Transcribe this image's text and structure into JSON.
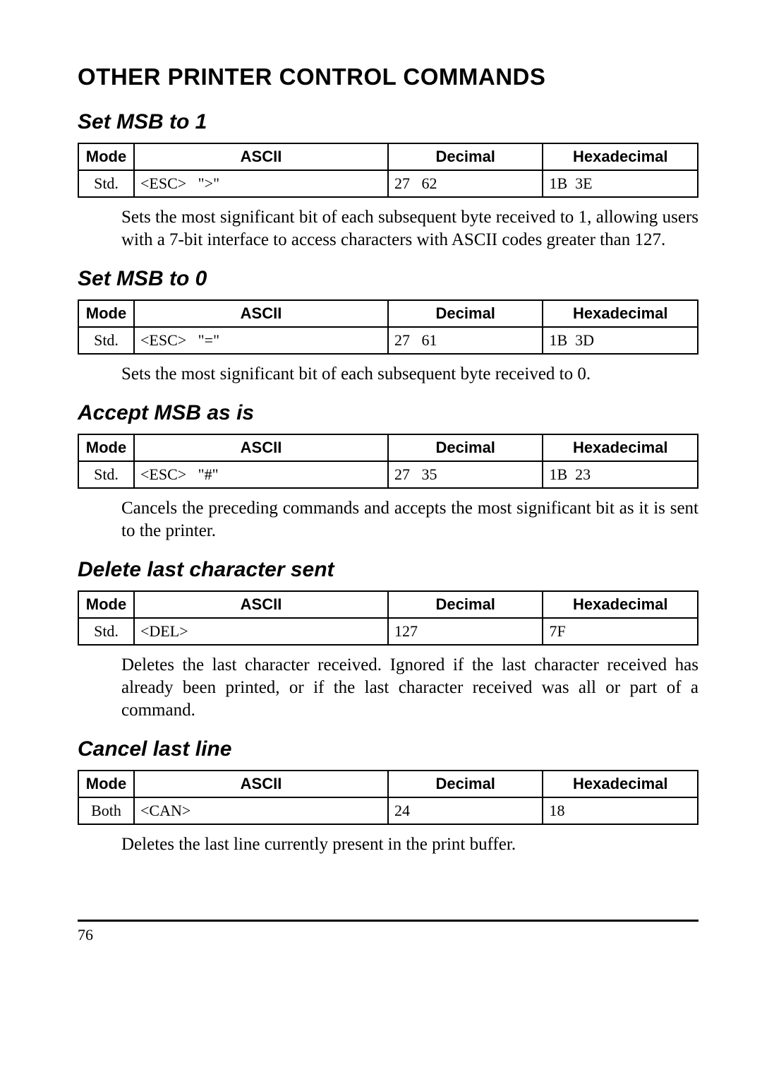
{
  "main_heading": "OTHER PRINTER CONTROL COMMANDS",
  "sections": [
    {
      "heading": "Set MSB to 1",
      "mode": "Std.",
      "ascii": "<ESC>   \">\"",
      "decimal": "27   62",
      "hex": "1B  3E",
      "desc": "Sets the most significant bit of each subsequent byte received to 1, allowing users with a 7-bit interface to access characters with ASCII codes greater than 127."
    },
    {
      "heading": "Set MSB to 0",
      "mode": "Std.",
      "ascii": "<ESC>   \"=\"",
      "decimal": "27   61",
      "hex": "1B  3D",
      "desc": "Sets the most significant bit of each subsequent byte received to 0."
    },
    {
      "heading": "Accept MSB as is",
      "mode": "Std.",
      "ascii": "<ESC>   \"#\"",
      "decimal": "27   35",
      "hex": "1B  23",
      "desc": "Cancels the preceding commands and accepts the most significant bit as it is sent to the printer."
    },
    {
      "heading": "Delete last character sent",
      "mode": "Std.",
      "ascii": "<DEL>",
      "decimal": "127",
      "hex": "7F",
      "desc": "Deletes the last character received. Ignored if the last character received has already been printed, or if the last character received was all or part of a command."
    },
    {
      "heading": "Cancel last line",
      "mode": "Both",
      "ascii": "<CAN>",
      "decimal": "24",
      "hex": "18",
      "desc": "Deletes the last line currently present in the print buffer."
    }
  ],
  "table_headers": {
    "mode": "Mode",
    "ascii": "ASCII",
    "decimal": "Decimal",
    "hex": "Hexadecimal"
  },
  "page_number": "76",
  "colors": {
    "text": "#000000",
    "background": "#ffffff",
    "border": "#000000"
  }
}
